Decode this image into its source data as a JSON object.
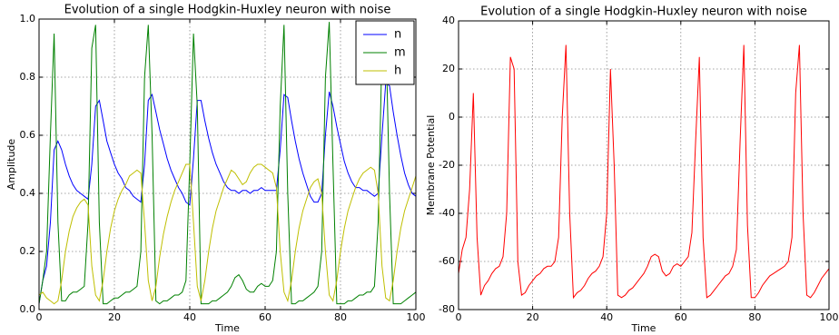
{
  "chart_data": [
    {
      "type": "line",
      "title": "Evolution of a single Hodgkin-Huxley neuron with noise",
      "xlabel": "Time",
      "ylabel": "Amplitude",
      "x": [
        0,
        1,
        2,
        3,
        4,
        5,
        6,
        7,
        8,
        9,
        10,
        11,
        12,
        13,
        14,
        15,
        16,
        17,
        18,
        19,
        20,
        21,
        22,
        23,
        24,
        25,
        26,
        27,
        28,
        29,
        30,
        31,
        32,
        33,
        34,
        35,
        36,
        37,
        38,
        39,
        40,
        41,
        42,
        43,
        44,
        45,
        46,
        47,
        48,
        49,
        50,
        51,
        52,
        53,
        54,
        55,
        56,
        57,
        58,
        59,
        60,
        61,
        62,
        63,
        64,
        65,
        66,
        67,
        68,
        69,
        70,
        71,
        72,
        73,
        74,
        75,
        76,
        77,
        78,
        79,
        80,
        81,
        82,
        83,
        84,
        85,
        86,
        87,
        88,
        89,
        90,
        91,
        92,
        93,
        94,
        95,
        96,
        97,
        98,
        99,
        100
      ],
      "series": [
        {
          "name": "n",
          "color": "#0000ff",
          "values": [
            0.02,
            0.1,
            0.15,
            0.3,
            0.55,
            0.58,
            0.55,
            0.5,
            0.46,
            0.43,
            0.41,
            0.4,
            0.39,
            0.38,
            0.5,
            0.7,
            0.72,
            0.65,
            0.58,
            0.54,
            0.5,
            0.47,
            0.45,
            0.42,
            0.41,
            0.39,
            0.38,
            0.37,
            0.5,
            0.72,
            0.74,
            0.68,
            0.62,
            0.57,
            0.52,
            0.48,
            0.45,
            0.42,
            0.4,
            0.37,
            0.36,
            0.52,
            0.72,
            0.72,
            0.65,
            0.59,
            0.54,
            0.5,
            0.47,
            0.44,
            0.42,
            0.41,
            0.41,
            0.4,
            0.41,
            0.41,
            0.4,
            0.41,
            0.41,
            0.42,
            0.41,
            0.41,
            0.41,
            0.41,
            0.55,
            0.74,
            0.73,
            0.65,
            0.58,
            0.52,
            0.47,
            0.43,
            0.39,
            0.37,
            0.37,
            0.4,
            0.6,
            0.75,
            0.7,
            0.63,
            0.57,
            0.51,
            0.47,
            0.44,
            0.42,
            0.42,
            0.41,
            0.41,
            0.4,
            0.39,
            0.4,
            0.6,
            0.78,
            0.77,
            0.68,
            0.6,
            0.53,
            0.47,
            0.43,
            0.4,
            0.39
          ]
        },
        {
          "name": "m",
          "color": "#008000",
          "values": [
            0.02,
            0.1,
            0.2,
            0.6,
            0.95,
            0.3,
            0.03,
            0.03,
            0.05,
            0.06,
            0.06,
            0.07,
            0.08,
            0.3,
            0.9,
            0.98,
            0.3,
            0.02,
            0.02,
            0.03,
            0.04,
            0.04,
            0.05,
            0.06,
            0.06,
            0.07,
            0.08,
            0.2,
            0.8,
            0.98,
            0.6,
            0.03,
            0.02,
            0.03,
            0.03,
            0.04,
            0.05,
            0.05,
            0.06,
            0.1,
            0.5,
            0.95,
            0.7,
            0.02,
            0.02,
            0.02,
            0.03,
            0.03,
            0.04,
            0.05,
            0.06,
            0.08,
            0.11,
            0.12,
            0.1,
            0.07,
            0.06,
            0.06,
            0.08,
            0.09,
            0.08,
            0.08,
            0.1,
            0.2,
            0.7,
            0.98,
            0.4,
            0.02,
            0.02,
            0.03,
            0.03,
            0.04,
            0.05,
            0.06,
            0.08,
            0.2,
            0.8,
            0.99,
            0.5,
            0.02,
            0.02,
            0.02,
            0.03,
            0.03,
            0.04,
            0.05,
            0.05,
            0.06,
            0.06,
            0.08,
            0.3,
            0.9,
            0.98,
            0.4,
            0.02,
            0.02,
            0.02,
            0.03,
            0.04,
            0.05,
            0.06
          ]
        },
        {
          "name": "h",
          "color": "#bfbf00",
          "values": [
            0.05,
            0.06,
            0.04,
            0.03,
            0.02,
            0.03,
            0.1,
            0.2,
            0.27,
            0.32,
            0.35,
            0.37,
            0.38,
            0.36,
            0.15,
            0.05,
            0.03,
            0.1,
            0.2,
            0.28,
            0.34,
            0.38,
            0.41,
            0.43,
            0.46,
            0.47,
            0.48,
            0.47,
            0.3,
            0.1,
            0.03,
            0.08,
            0.18,
            0.26,
            0.32,
            0.37,
            0.41,
            0.44,
            0.47,
            0.5,
            0.5,
            0.3,
            0.08,
            0.03,
            0.1,
            0.2,
            0.28,
            0.34,
            0.38,
            0.42,
            0.45,
            0.48,
            0.47,
            0.45,
            0.43,
            0.44,
            0.47,
            0.49,
            0.5,
            0.5,
            0.49,
            0.48,
            0.47,
            0.42,
            0.2,
            0.06,
            0.03,
            0.1,
            0.2,
            0.28,
            0.34,
            0.38,
            0.42,
            0.44,
            0.45,
            0.4,
            0.2,
            0.05,
            0.03,
            0.1,
            0.2,
            0.28,
            0.34,
            0.38,
            0.42,
            0.45,
            0.47,
            0.48,
            0.49,
            0.48,
            0.4,
            0.15,
            0.04,
            0.03,
            0.1,
            0.2,
            0.28,
            0.34,
            0.38,
            0.42,
            0.46
          ]
        }
      ],
      "xlim": [
        0,
        100
      ],
      "ylim": [
        0,
        1
      ],
      "xticks": [
        0,
        20,
        40,
        60,
        80,
        100
      ],
      "yticks": [
        {
          "value": 0,
          "label": "0.0"
        },
        0.2,
        0.4,
        0.6,
        0.8,
        {
          "value": 1,
          "label": "1.0"
        }
      ],
      "grid": true,
      "legend": "upper right"
    },
    {
      "type": "line",
      "title": "Evolution of a single Hodgkin-Huxley neuron with noise",
      "xlabel": "Time",
      "ylabel": "Membrane Potential",
      "x": [
        0,
        1,
        2,
        3,
        4,
        5,
        6,
        7,
        8,
        9,
        10,
        11,
        12,
        13,
        14,
        15,
        16,
        17,
        18,
        19,
        20,
        21,
        22,
        23,
        24,
        25,
        26,
        27,
        28,
        29,
        30,
        31,
        32,
        33,
        34,
        35,
        36,
        37,
        38,
        39,
        40,
        41,
        42,
        43,
        44,
        45,
        46,
        47,
        48,
        49,
        50,
        51,
        52,
        53,
        54,
        55,
        56,
        57,
        58,
        59,
        60,
        61,
        62,
        63,
        64,
        65,
        66,
        67,
        68,
        69,
        70,
        71,
        72,
        73,
        74,
        75,
        76,
        77,
        78,
        79,
        80,
        81,
        82,
        83,
        84,
        85,
        86,
        87,
        88,
        89,
        90,
        91,
        92,
        93,
        94,
        95,
        96,
        97,
        98,
        99,
        100
      ],
      "series": [
        {
          "color": "#ff0000",
          "values": [
            -65,
            -55,
            -50,
            -30,
            10,
            -50,
            -74,
            -70,
            -68,
            -65,
            -63,
            -62,
            -58,
            -40,
            25,
            20,
            -60,
            -74,
            -73,
            -70,
            -68,
            -66,
            -65,
            -63,
            -62,
            -62,
            -60,
            -50,
            0,
            30,
            -40,
            -75,
            -73,
            -72,
            -70,
            -67,
            -65,
            -64,
            -62,
            -58,
            -40,
            20,
            -20,
            -74,
            -75,
            -74,
            -72,
            -71,
            -69,
            -67,
            -65,
            -62,
            -58,
            -57,
            -58,
            -64,
            -66,
            -65,
            -62,
            -61,
            -62,
            -60,
            -58,
            -48,
            -10,
            25,
            -50,
            -75,
            -74,
            -72,
            -70,
            -68,
            -66,
            -65,
            -62,
            -55,
            -10,
            30,
            -45,
            -75,
            -75,
            -73,
            -70,
            -68,
            -66,
            -65,
            -64,
            -63,
            -62,
            -60,
            -50,
            10,
            30,
            -40,
            -74,
            -75,
            -73,
            -70,
            -67,
            -65,
            -63
          ]
        }
      ],
      "xlim": [
        0,
        100
      ],
      "ylim": [
        -80,
        40
      ],
      "xticks": [
        0,
        20,
        40,
        60,
        80,
        100
      ],
      "yticks": [
        -80,
        -60,
        -40,
        -20,
        0,
        20,
        40
      ],
      "grid": true
    }
  ]
}
